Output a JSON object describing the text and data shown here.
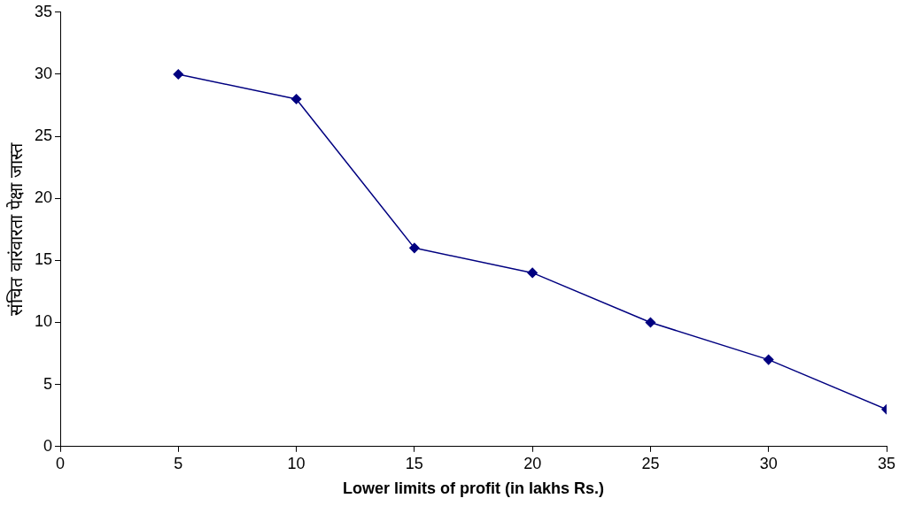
{
  "chart_data": {
    "type": "line",
    "xlabel": "Lower limits of profit (in lakhs Rs.)",
    "ylabel": "संचित वारंवारता पेक्षा जास्त",
    "x": [
      5,
      10,
      15,
      20,
      25,
      30,
      35
    ],
    "series": [
      {
        "color": "#000080",
        "values": [
          30,
          28,
          16,
          14,
          10,
          7,
          3
        ]
      }
    ],
    "xlim": [
      0,
      35
    ],
    "xticks": [
      0,
      5,
      10,
      15,
      20,
      25,
      30,
      35
    ],
    "ylim": [
      0,
      35
    ],
    "yticks": [
      0,
      5,
      10,
      15,
      20,
      25,
      30,
      35
    ],
    "grid": false,
    "legend": false,
    "marker": "diamond",
    "line_style": "solid"
  }
}
